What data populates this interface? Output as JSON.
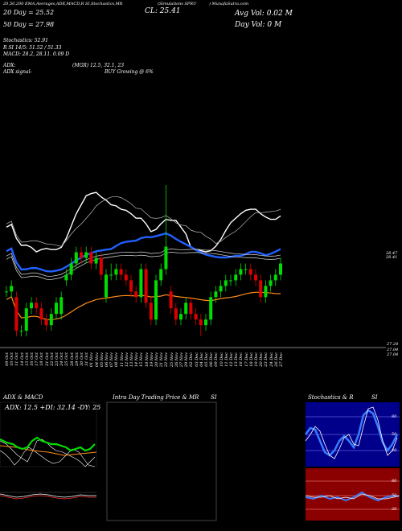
{
  "header": {
    "line1": "20,50,200 EMA,Averages,ADX,MACD,R    SI,Stochastics,MR",
    "line1_mid": "(Simulations SPRU",
    "line1_right": ") MunafaSutra.com",
    "cl_label": "CL: 25.41",
    "avg_vol": "Avg Vol: 0.02  M",
    "day_vol": "Day Vol: 0   M",
    "day20": "20  Day = 25.52",
    "day50": "50  Day = 27.98",
    "stoch": "Stochastics: 52.91",
    "rsi": "R   SI 14/5: 51.52  / 51.33",
    "macd": "MACD: 28.2, 28.11. 0.09 D",
    "adx": "ADX:",
    "adx_mid": "(MGR) 12.5,  32.1,  23",
    "adx_signal": "ADX  signal:",
    "signal": "BUY Growing @ 6%"
  },
  "price_labels": {
    "top_a": "28.47",
    "top_b": "28.41",
    "bot_a": "27.24",
    "bot_b": "27.04",
    "bot_c": "27.04"
  },
  "dates": [
    "09 Oct",
    "10 Oct",
    "11 Oct",
    "14 Oct",
    "15 Oct",
    "16 Oct",
    "17 Oct",
    "18 Oct",
    "21 Oct",
    "22 Oct",
    "23 Oct",
    "24 Oct",
    "25 Oct",
    "28 Oct",
    "29 Oct",
    "30 Oct",
    "31 Oct",
    "01 Nov",
    "04 Nov",
    "05 Nov",
    "06 Nov",
    "07 Nov",
    "08 Nov",
    "11 Nov",
    "12 Nov",
    "13 Nov",
    "14 Nov",
    "15 Nov",
    "18 Nov",
    "19 Nov",
    "20 Nov",
    "21 Nov",
    "22 Nov",
    "25 Nov",
    "26 Nov",
    "27 Nov",
    "29 Nov",
    "02 Dec",
    "03 Dec",
    "04 Dec",
    "05 Dec",
    "06 Dec",
    "09 Dec",
    "10 Dec",
    "11 Dec",
    "12 Dec",
    "13 Dec",
    "16 Dec",
    "17 Dec",
    "18 Dec",
    "19 Dec",
    "20 Dec",
    "23 Dec",
    "24 Dec",
    "26 Dec",
    "27 Dec"
  ],
  "panels": {
    "adx_title": "ADX  & MACD",
    "adx_values": "ADX: 12.5  +DI: 32.14  -DY: 25",
    "intraday_title": "Intra  Day Trading Price  & MR",
    "intraday_si": "SI",
    "stoch_title": "Stochastics & R",
    "stoch_si": "SI",
    "stoch_ticks": [
      "80",
      "50",
      "20"
    ],
    "rsi_ticks": [
      "80",
      "50",
      "20"
    ]
  },
  "colors": {
    "bull": "#00dd00",
    "bear": "#dd0000",
    "ema20": "#ffffff",
    "ema50": "#2060ff",
    "ema200": "#ff8c1a",
    "rsi_bg": "#8b0000"
  },
  "chart_data": {
    "type": "candlestick",
    "x": [
      "09 Oct",
      "10 Oct",
      "11 Oct",
      "14 Oct",
      "15 Oct",
      "16 Oct",
      "17 Oct",
      "18 Oct",
      "21 Oct",
      "22 Oct",
      "23 Oct",
      "24 Oct",
      "25 Oct",
      "28 Oct",
      "29 Oct",
      "30 Oct",
      "31 Oct",
      "01 Nov",
      "04 Nov",
      "05 Nov",
      "06 Nov",
      "07 Nov",
      "08 Nov",
      "11 Nov",
      "12 Nov",
      "13 Nov",
      "14 Nov",
      "15 Nov",
      "18 Nov",
      "19 Nov",
      "20 Nov",
      "21 Nov",
      "22 Nov",
      "25 Nov",
      "26 Nov",
      "27 Nov",
      "29 Nov",
      "02 Dec",
      "03 Dec",
      "04 Dec",
      "05 Dec",
      "06 Dec",
      "09 Dec",
      "10 Dec",
      "11 Dec",
      "12 Dec",
      "13 Dec",
      "16 Dec",
      "17 Dec",
      "18 Dec",
      "19 Dec",
      "20 Dec",
      "23 Dec",
      "24 Dec",
      "26 Dec",
      "27 Dec"
    ],
    "open": [
      28.0,
      28.0,
      27.9,
      27.3,
      27.3,
      27.7,
      27.8,
      27.7,
      27.5,
      27.4,
      27.6,
      27.6,
      28.2,
      28.3,
      28.5,
      28.7,
      28.6,
      28.7,
      28.5,
      28.6,
      27.9,
      28.3,
      28.3,
      28.4,
      28.3,
      28.2,
      28.0,
      27.9,
      28.4,
      27.8,
      27.5,
      28.2,
      28.4,
      28.0,
      27.7,
      27.5,
      27.6,
      27.8,
      27.6,
      27.5,
      27.4,
      27.5,
      27.9,
      28.0,
      28.1,
      28.2,
      28.2,
      28.3,
      28.4,
      28.4,
      28.3,
      28.2,
      27.9,
      28.1,
      28.2,
      28.3
    ],
    "close": [
      28.0,
      28.1,
      27.3,
      27.3,
      27.7,
      27.8,
      27.7,
      27.5,
      27.4,
      27.6,
      27.8,
      27.9,
      28.3,
      28.5,
      28.7,
      28.6,
      28.7,
      28.5,
      28.6,
      28.3,
      28.3,
      28.3,
      28.4,
      28.3,
      28.2,
      28.0,
      27.9,
      28.4,
      27.8,
      27.5,
      28.2,
      28.4,
      28.8,
      27.7,
      27.5,
      27.6,
      27.8,
      27.6,
      27.5,
      27.4,
      27.5,
      27.9,
      28.0,
      28.1,
      28.2,
      28.2,
      28.3,
      28.4,
      28.4,
      28.3,
      28.2,
      27.9,
      28.1,
      28.2,
      28.3,
      28.5
    ],
    "high": [
      28.1,
      28.2,
      28.0,
      27.4,
      27.8,
      27.9,
      27.9,
      27.8,
      27.6,
      27.7,
      27.9,
      28.0,
      28.4,
      28.6,
      28.8,
      28.8,
      28.8,
      28.8,
      28.7,
      28.7,
      28.4,
      28.5,
      28.5,
      28.5,
      28.4,
      28.3,
      28.1,
      28.5,
      28.5,
      27.9,
      28.3,
      28.5,
      29.9,
      28.1,
      27.8,
      27.7,
      27.9,
      27.9,
      27.7,
      27.6,
      27.6,
      28.0,
      28.1,
      28.2,
      28.3,
      28.3,
      28.4,
      28.5,
      28.5,
      28.5,
      28.4,
      28.3,
      28.2,
      28.3,
      28.4,
      28.6
    ],
    "low": [
      27.9,
      27.9,
      27.2,
      27.2,
      27.2,
      27.6,
      27.6,
      27.4,
      27.3,
      27.3,
      27.5,
      27.5,
      28.1,
      28.2,
      28.4,
      28.5,
      28.5,
      28.4,
      28.4,
      28.2,
      27.8,
      28.2,
      28.2,
      28.2,
      28.1,
      27.9,
      27.8,
      27.8,
      27.7,
      27.4,
      27.4,
      28.1,
      28.3,
      27.6,
      27.4,
      27.4,
      27.5,
      27.5,
      27.4,
      27.2,
      27.3,
      27.4,
      27.8,
      27.9,
      28.0,
      28.1,
      28.1,
      28.2,
      28.3,
      28.2,
      28.1,
      27.8,
      27.8,
      28.0,
      28.1,
      28.2
    ],
    "ylim": [
      27.0,
      29.9
    ]
  }
}
